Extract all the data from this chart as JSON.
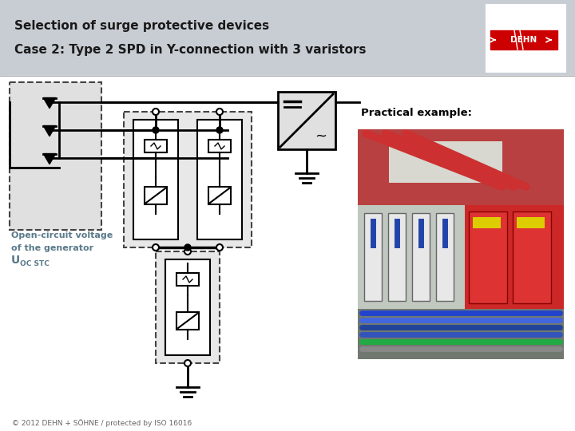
{
  "title_line1": "Selection of surge protective devices",
  "title_line2": "Case 2: Type 2 SPD in Y-connection with 3 varistors",
  "practical_label": "Practical example:",
  "footer_text": "© 2012 DEHN + SÖHNE / protected by ISO 16016",
  "bg_color": "#ffffff",
  "header_bg": "#c8cdd4",
  "title_color": "#1a1a1a",
  "dashed_box_color": "#555555",
  "label_color": "#5a7a8a",
  "dehn_red": "#cc0000",
  "photo_colors": {
    "top_red": "#c04040",
    "mid_gray": "#b0b8b0",
    "mid_right_red": "#cc3333",
    "bottom_gray": "#808888",
    "bg": "#a0a8a0"
  }
}
